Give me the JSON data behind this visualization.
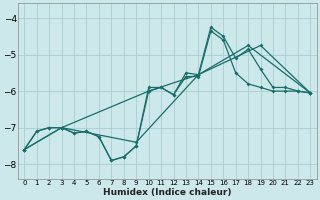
{
  "xlabel": "Humidex (Indice chaleur)",
  "bg_color": "#cce8ea",
  "grid_color": "#aacdd2",
  "line_color": "#1a6e6a",
  "xlim": [
    -0.5,
    23.5
  ],
  "ylim": [
    -8.4,
    -3.6
  ],
  "yticks": [
    -8,
    -7,
    -6,
    -5,
    -4
  ],
  "xticks": [
    0,
    1,
    2,
    3,
    4,
    5,
    6,
    7,
    8,
    9,
    10,
    11,
    12,
    13,
    14,
    15,
    16,
    17,
    18,
    19,
    20,
    21,
    22,
    23
  ],
  "line1_x": [
    0,
    1,
    2,
    3,
    4,
    5,
    6,
    7,
    8,
    9,
    10,
    11,
    12,
    13,
    14,
    15,
    16,
    17,
    18,
    19,
    20,
    21,
    22,
    23
  ],
  "line1_y": [
    -7.6,
    -7.1,
    -7.0,
    -7.0,
    -7.15,
    -7.1,
    -7.25,
    -7.9,
    -7.8,
    -7.5,
    -6.0,
    -5.9,
    -6.1,
    -5.6,
    -5.6,
    -4.35,
    -4.6,
    -5.5,
    -5.8,
    -5.9,
    -6.0,
    -6.0,
    -6.0,
    -6.05
  ],
  "line2_x": [
    0,
    1,
    2,
    3,
    4,
    5,
    6,
    7,
    8,
    9,
    10,
    11,
    12,
    13,
    14,
    15,
    16,
    17,
    18,
    19,
    20,
    21,
    22,
    23
  ],
  "line2_y": [
    -7.6,
    -7.1,
    -7.0,
    -7.0,
    -7.15,
    -7.1,
    -7.25,
    -7.9,
    -7.8,
    -7.5,
    -5.9,
    -5.9,
    -6.1,
    -5.5,
    -5.55,
    -4.25,
    -4.5,
    -5.1,
    -4.85,
    -5.4,
    -5.9,
    -5.9,
    -6.0,
    -6.05
  ],
  "line3_x": [
    0,
    3,
    10,
    14,
    19,
    23
  ],
  "line3_y": [
    -7.6,
    -7.0,
    -6.0,
    -5.55,
    -4.75,
    -6.05
  ],
  "line4_x": [
    0,
    3,
    9,
    14,
    18,
    23
  ],
  "line4_y": [
    -7.6,
    -7.0,
    -7.4,
    -5.55,
    -4.75,
    -6.05
  ]
}
